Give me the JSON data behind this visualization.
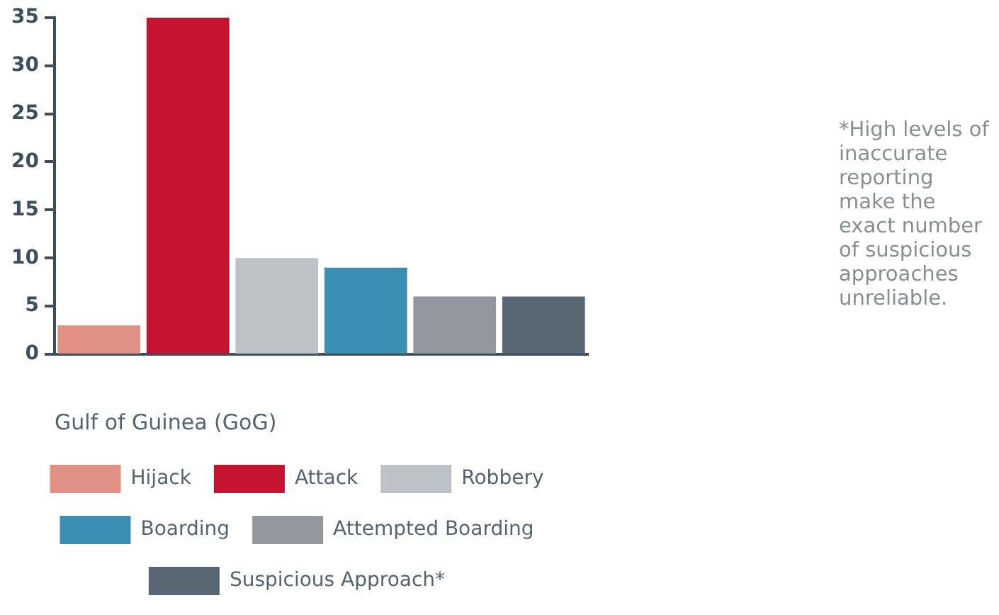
{
  "chart_data": {
    "type": "bar",
    "categories": [
      null,
      null,
      null,
      null,
      null,
      null
    ],
    "xlabel": "Gulf of Guinea (GoG)",
    "series": [
      {
        "name": "Hijack",
        "color": "#e09184",
        "values": [
          3,
          null,
          null,
          null,
          null,
          null
        ]
      },
      {
        "name": "Attack",
        "color": "#c41230",
        "values": [
          null,
          35,
          null,
          null,
          null,
          null
        ]
      },
      {
        "name": "Robbery",
        "color": "#bdc1c8",
        "values": [
          null,
          null,
          10,
          null,
          null,
          null
        ]
      },
      {
        "name": "Boarding",
        "color": "#3a8fb2",
        "values": [
          null,
          null,
          null,
          9,
          null,
          null
        ]
      },
      {
        "name": "Attempted Boarding",
        "color": "#93969e",
        "values": [
          null,
          null,
          null,
          null,
          6,
          null
        ]
      },
      {
        "name": "Suspicious Approach*",
        "color": "#586672",
        "values": [
          null,
          null,
          null,
          null,
          null,
          6
        ]
      }
    ],
    "ylim": [
      0,
      35
    ],
    "yticks": [
      0,
      5,
      10,
      15,
      20,
      25,
      30,
      35
    ],
    "grid": false,
    "legend": "bottom",
    "annotations": [
      "*High levels of inaccurate reporting make the exact number of suspicious approaches unreliable."
    ]
  }
}
